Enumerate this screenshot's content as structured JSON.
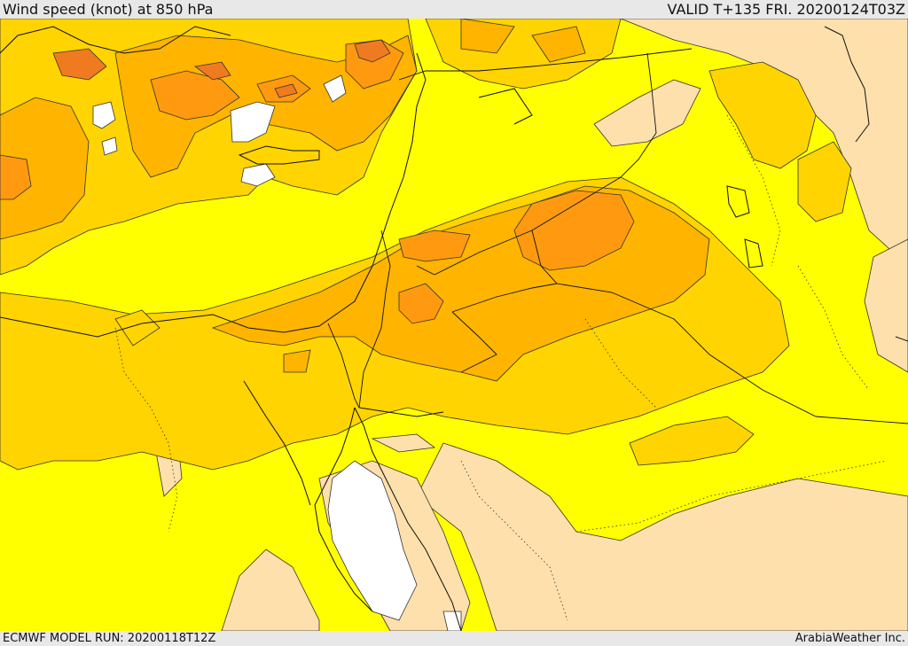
{
  "header": {
    "title": "Wind speed (knot) at 850 hPa",
    "valid": "VALID T+135 FRI. 20200124T03Z"
  },
  "footer": {
    "model_run": "ECMWF MODEL RUN: 20200118T12Z",
    "credit": "ArabiaWeather Inc."
  },
  "palette": {
    "lt10": "#ffffff",
    "10-15": "#fde0ac",
    "15-20": "#ffff00",
    "20-25": "#ffd400",
    "25-30": "#ffb400",
    "30-35": "#ff9a10",
    "35-40": "#f07a20",
    "border": "#111111"
  }
}
